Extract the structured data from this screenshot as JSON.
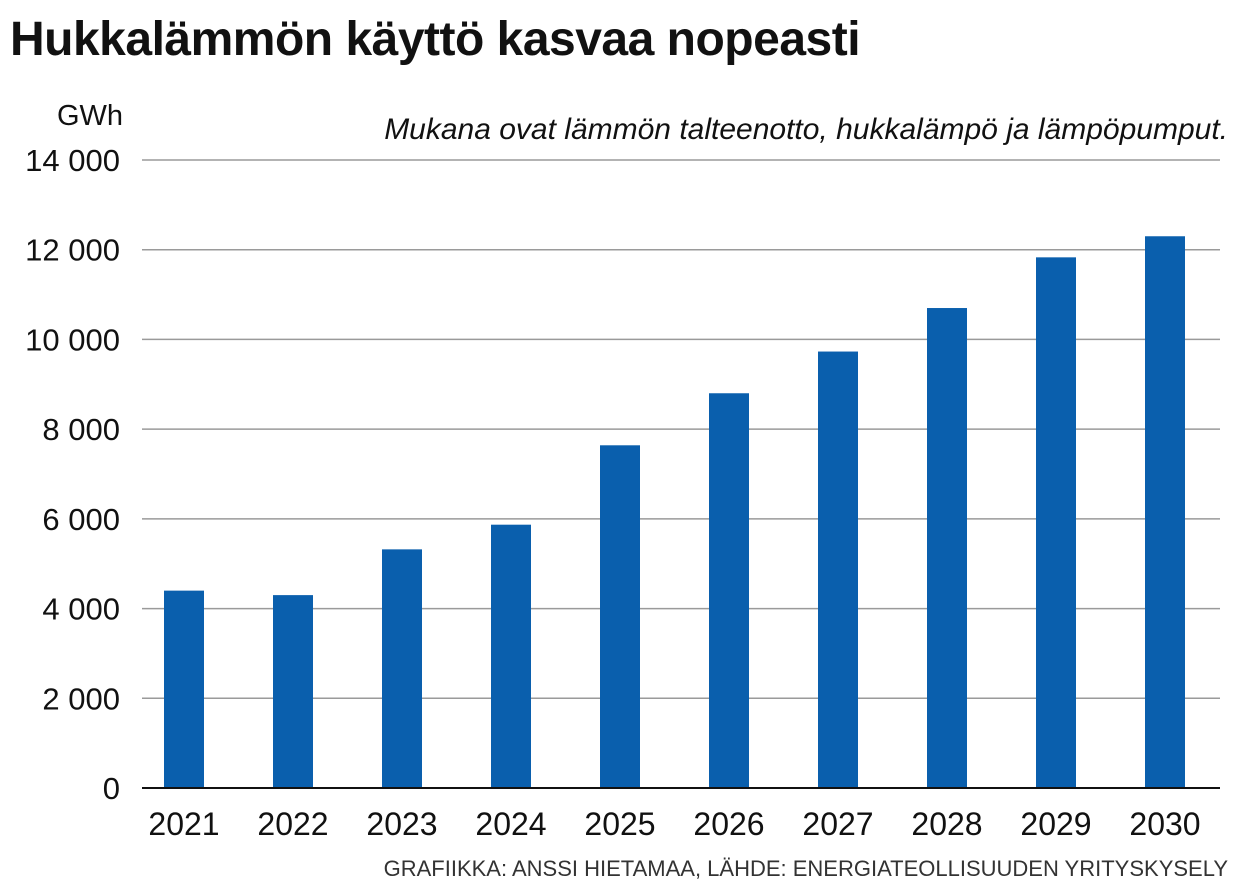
{
  "chart_data": {
    "type": "bar",
    "title": "Hukkalämmön käyttö kasvaa nopeasti",
    "subtitle": "Mukana ovat lämmön talteenotto, hukkalämpö ja lämpöpumput.",
    "ylabel": "GWh",
    "xlabel": "",
    "categories": [
      "2021",
      "2022",
      "2023",
      "2024",
      "2025",
      "2026",
      "2027",
      "2028",
      "2029",
      "2030"
    ],
    "values": [
      4400,
      4300,
      5320,
      5870,
      7640,
      8800,
      9730,
      10700,
      11830,
      12300
    ],
    "ylim": [
      0,
      14000
    ],
    "yticks": [
      0,
      2000,
      4000,
      6000,
      8000,
      10000,
      12000,
      14000
    ],
    "ytick_labels": [
      "0",
      "2 000",
      "4 000",
      "6 000",
      "8 000",
      "10 000",
      "12 000",
      "14 000"
    ],
    "grid": true,
    "bar_color": "#0a5fad",
    "source": "GRAFIIKKA: ANSSI HIETAMAA, LÄHDE: ENERGIATEOLLISUUDEN YRITYSKYSELY"
  }
}
